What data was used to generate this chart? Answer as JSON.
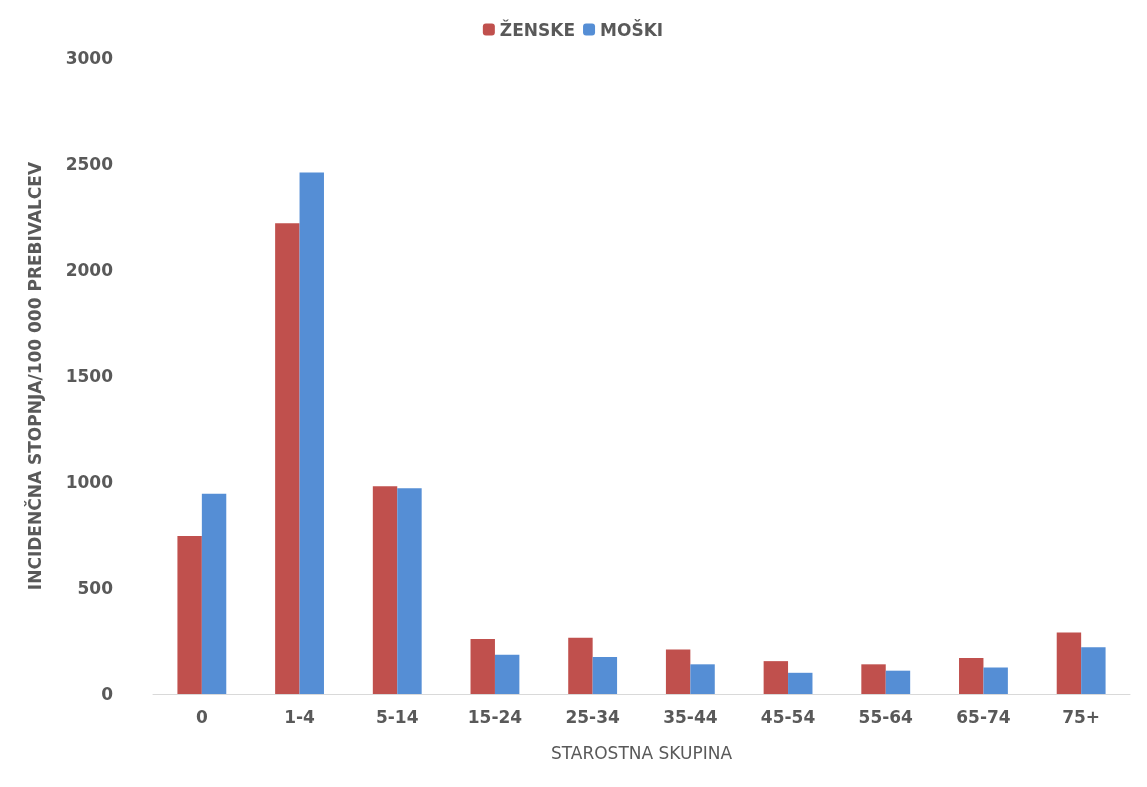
{
  "chart_data": {
    "type": "bar",
    "xlabel": "STAROSTNA SKUPINA",
    "ylabel": "INCIDENČNA STOPNJA/100 000 PREBIVALCEV",
    "categories": [
      "0",
      "1-4",
      "5-14",
      "15-24",
      "25-34",
      "35-44",
      "45-54",
      "55-64",
      "65-74",
      "75+"
    ],
    "series": [
      {
        "name": "ŽENSKE",
        "color": "#c0504d",
        "values": [
          745,
          2220,
          980,
          260,
          265,
          210,
          155,
          140,
          170,
          290
        ]
      },
      {
        "name": "MOŠKI",
        "color": "#558ed5",
        "values": [
          945,
          2460,
          970,
          185,
          175,
          140,
          100,
          110,
          125,
          220
        ]
      }
    ],
    "ylim": [
      0,
      3000
    ],
    "yticks": [
      0,
      500,
      1000,
      1500,
      2000,
      2500,
      3000
    ],
    "grid": false,
    "legend": "top"
  }
}
